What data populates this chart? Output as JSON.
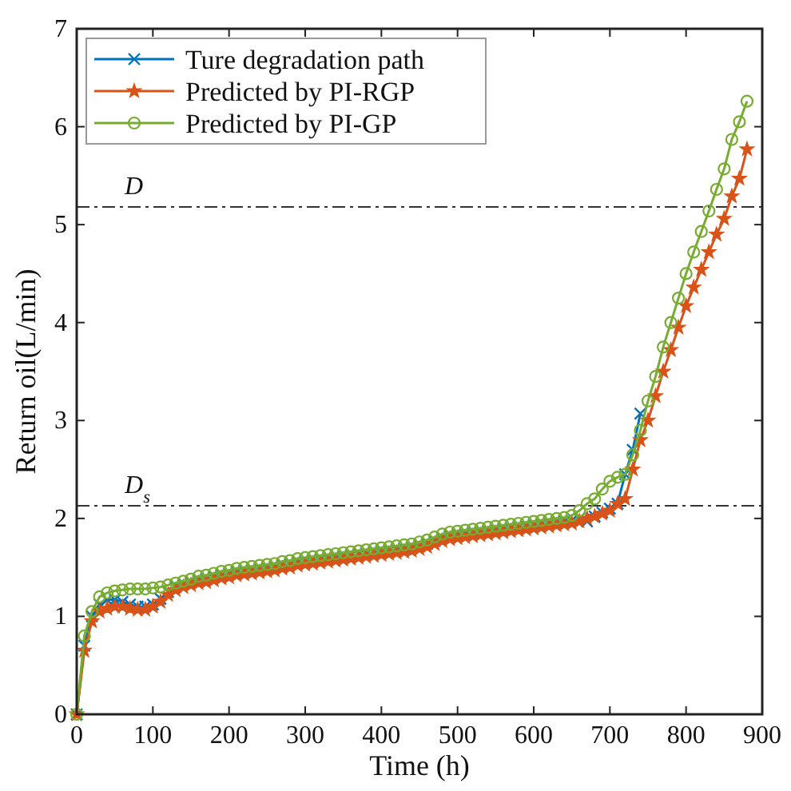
{
  "chart_data": {
    "type": "line",
    "xlabel": "Time (h)",
    "ylabel": "Return oil(L/min)",
    "xlim": [
      0,
      900
    ],
    "ylim": [
      0,
      7
    ],
    "xticks": [
      0,
      100,
      200,
      300,
      400,
      500,
      600,
      700,
      800,
      900
    ],
    "yticks": [
      0,
      1,
      2,
      3,
      4,
      5,
      6,
      7
    ],
    "grid": false,
    "legend": "top left",
    "line_style": "solid",
    "ref_lines": [
      {
        "axis": "y",
        "value": 5.18,
        "label": "D",
        "line_style": "dashdot"
      },
      {
        "axis": "y",
        "value": 2.13,
        "label": "D$_{s}$",
        "line_style": "dashdot"
      }
    ],
    "series": [
      {
        "name": "Ture degradation path",
        "color": "#0072bd",
        "marker": "cross",
        "x": [
          0,
          10,
          20,
          30,
          40,
          50,
          60,
          70,
          80,
          90,
          100,
          110,
          120,
          130,
          140,
          150,
          160,
          170,
          180,
          190,
          200,
          210,
          220,
          230,
          240,
          250,
          260,
          270,
          280,
          290,
          300,
          310,
          320,
          330,
          340,
          350,
          360,
          370,
          380,
          390,
          400,
          410,
          420,
          430,
          440,
          450,
          460,
          470,
          480,
          490,
          500,
          510,
          520,
          530,
          540,
          550,
          560,
          570,
          580,
          590,
          600,
          610,
          620,
          630,
          640,
          650,
          660,
          670,
          680,
          690,
          700,
          710,
          720,
          730,
          740
        ],
        "values": [
          0,
          0.7,
          1.0,
          1.12,
          1.17,
          1.17,
          1.15,
          1.12,
          1.1,
          1.1,
          1.12,
          1.18,
          1.25,
          1.3,
          1.33,
          1.35,
          1.37,
          1.38,
          1.4,
          1.42,
          1.43,
          1.45,
          1.46,
          1.47,
          1.48,
          1.49,
          1.5,
          1.52,
          1.53,
          1.55,
          1.56,
          1.57,
          1.58,
          1.59,
          1.6,
          1.61,
          1.62,
          1.63,
          1.64,
          1.65,
          1.66,
          1.67,
          1.68,
          1.69,
          1.7,
          1.72,
          1.74,
          1.77,
          1.8,
          1.82,
          1.83,
          1.84,
          1.85,
          1.86,
          1.87,
          1.88,
          1.89,
          1.9,
          1.91,
          1.92,
          1.93,
          1.94,
          1.95,
          1.96,
          1.97,
          1.98,
          2.0,
          1.97,
          2.02,
          2.06,
          2.1,
          2.15,
          2.45,
          2.7,
          3.07
        ]
      },
      {
        "name": "Predicted by PI-RGP",
        "color": "#d95319",
        "marker": "star",
        "x": [
          0,
          10,
          20,
          30,
          40,
          50,
          60,
          70,
          80,
          90,
          100,
          110,
          120,
          130,
          140,
          150,
          160,
          170,
          180,
          190,
          200,
          210,
          220,
          230,
          240,
          250,
          260,
          270,
          280,
          290,
          300,
          310,
          320,
          330,
          340,
          350,
          360,
          370,
          380,
          390,
          400,
          410,
          420,
          430,
          440,
          450,
          460,
          470,
          480,
          490,
          500,
          510,
          520,
          530,
          540,
          550,
          560,
          570,
          580,
          590,
          600,
          610,
          620,
          630,
          640,
          650,
          660,
          670,
          680,
          690,
          700,
          710,
          720,
          730,
          740,
          750,
          760,
          770,
          780,
          790,
          800,
          810,
          820,
          830,
          840,
          850,
          860,
          870,
          880
        ],
        "values": [
          0,
          0.65,
          0.95,
          1.05,
          1.08,
          1.1,
          1.1,
          1.08,
          1.07,
          1.07,
          1.1,
          1.15,
          1.22,
          1.27,
          1.3,
          1.32,
          1.34,
          1.35,
          1.37,
          1.39,
          1.4,
          1.42,
          1.43,
          1.44,
          1.45,
          1.46,
          1.47,
          1.49,
          1.5,
          1.52,
          1.53,
          1.54,
          1.55,
          1.56,
          1.57,
          1.58,
          1.59,
          1.6,
          1.61,
          1.62,
          1.63,
          1.64,
          1.65,
          1.66,
          1.67,
          1.69,
          1.71,
          1.74,
          1.77,
          1.79,
          1.8,
          1.81,
          1.82,
          1.83,
          1.84,
          1.85,
          1.86,
          1.87,
          1.88,
          1.89,
          1.9,
          1.91,
          1.92,
          1.93,
          1.94,
          1.95,
          1.97,
          2.0,
          2.02,
          2.05,
          2.08,
          2.15,
          2.2,
          2.5,
          2.8,
          3.0,
          3.25,
          3.5,
          3.72,
          3.95,
          4.17,
          4.36,
          4.54,
          4.72,
          4.9,
          5.06,
          5.29,
          5.47,
          5.77
        ]
      },
      {
        "name": "Predicted by PI-GP",
        "color": "#77ac30",
        "marker": "circle",
        "x": [
          0,
          10,
          20,
          30,
          40,
          50,
          60,
          70,
          80,
          90,
          100,
          110,
          120,
          130,
          140,
          150,
          160,
          170,
          180,
          190,
          200,
          210,
          220,
          230,
          240,
          250,
          260,
          270,
          280,
          290,
          300,
          310,
          320,
          330,
          340,
          350,
          360,
          370,
          380,
          390,
          400,
          410,
          420,
          430,
          440,
          450,
          460,
          470,
          480,
          490,
          500,
          510,
          520,
          530,
          540,
          550,
          560,
          570,
          580,
          590,
          600,
          610,
          620,
          630,
          640,
          650,
          660,
          670,
          680,
          690,
          700,
          710,
          720,
          730,
          740,
          750,
          760,
          770,
          780,
          790,
          800,
          810,
          820,
          830,
          840,
          850,
          860,
          870,
          880
        ],
        "values": [
          0,
          0.8,
          1.05,
          1.2,
          1.24,
          1.26,
          1.27,
          1.28,
          1.28,
          1.28,
          1.29,
          1.3,
          1.32,
          1.34,
          1.36,
          1.38,
          1.41,
          1.42,
          1.44,
          1.46,
          1.47,
          1.49,
          1.5,
          1.51,
          1.52,
          1.53,
          1.54,
          1.56,
          1.57,
          1.59,
          1.6,
          1.61,
          1.62,
          1.63,
          1.64,
          1.65,
          1.66,
          1.67,
          1.68,
          1.69,
          1.7,
          1.71,
          1.72,
          1.73,
          1.74,
          1.76,
          1.78,
          1.81,
          1.84,
          1.86,
          1.87,
          1.88,
          1.89,
          1.9,
          1.91,
          1.92,
          1.93,
          1.94,
          1.95,
          1.96,
          1.97,
          1.98,
          1.99,
          2.0,
          2.01,
          2.03,
          2.08,
          2.15,
          2.2,
          2.3,
          2.38,
          2.42,
          2.45,
          2.65,
          2.9,
          3.2,
          3.45,
          3.75,
          4.0,
          4.25,
          4.5,
          4.72,
          4.93,
          5.14,
          5.36,
          5.57,
          5.87,
          6.05,
          6.26
        ]
      }
    ]
  }
}
